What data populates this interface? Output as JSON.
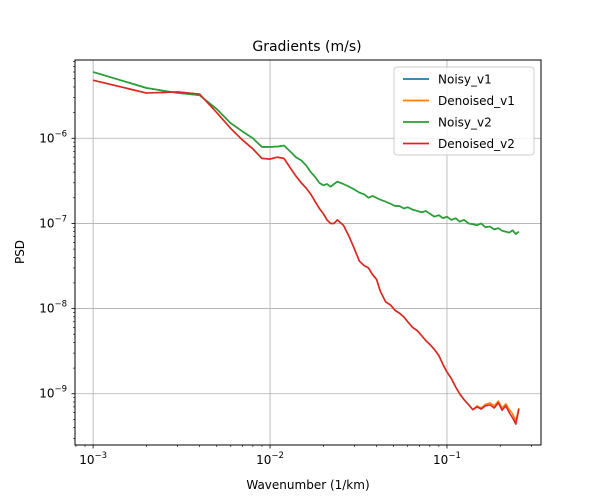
{
  "chart_data": {
    "type": "line",
    "title": "Gradients (m/s)",
    "xlabel": "Wavenumber (1/km)",
    "ylabel": "PSD",
    "xscale": "log",
    "yscale": "log",
    "xlim": [
      0.00079,
      0.34
    ],
    "ylim": [
      2.5e-10,
      8.3e-06
    ],
    "grid": true,
    "legend_position": "top-right",
    "x_ticks": [
      {
        "value": 0.001,
        "base": "10",
        "exp": "−3"
      },
      {
        "value": 0.01,
        "base": "10",
        "exp": "−2"
      },
      {
        "value": 0.1,
        "base": "10",
        "exp": "−1"
      }
    ],
    "y_ticks": [
      {
        "value": 1e-09,
        "base": "10",
        "exp": "−9"
      },
      {
        "value": 1e-08,
        "base": "10",
        "exp": "−8"
      },
      {
        "value": 1e-07,
        "base": "10",
        "exp": "−7"
      },
      {
        "value": 1e-06,
        "base": "10",
        "exp": "−6"
      }
    ],
    "x": [
      0.001,
      0.002,
      0.003,
      0.004,
      0.005,
      0.006,
      0.007,
      0.008,
      0.009,
      0.01,
      0.011,
      0.012,
      0.013,
      0.014,
      0.015,
      0.016,
      0.017,
      0.018,
      0.019,
      0.02,
      0.021,
      0.022,
      0.023,
      0.024,
      0.026,
      0.028,
      0.03,
      0.032,
      0.034,
      0.036,
      0.038,
      0.04,
      0.042,
      0.045,
      0.048,
      0.051,
      0.054,
      0.057,
      0.06,
      0.064,
      0.068,
      0.072,
      0.076,
      0.08,
      0.085,
      0.09,
      0.095,
      0.1,
      0.106,
      0.112,
      0.118,
      0.125,
      0.132,
      0.14,
      0.148,
      0.156,
      0.165,
      0.175,
      0.185,
      0.195,
      0.205,
      0.215,
      0.225,
      0.235,
      0.245,
      0.255
    ],
    "series": [
      {
        "name": "Noisy_v1",
        "color": "#1f77b4",
        "values": [
          6e-06,
          3.9e-06,
          3.4e-06,
          3.2e-06,
          2.2e-06,
          1.5e-06,
          1.2e-06,
          1e-06,
          7.9e-07,
          7.9e-07,
          8e-07,
          8.2e-07,
          7e-07,
          6e-07,
          5.5e-07,
          4.8e-07,
          4e-07,
          3.5e-07,
          3e-07,
          2.8e-07,
          2.9e-07,
          2.7e-07,
          2.9e-07,
          3.1e-07,
          2.9e-07,
          2.7e-07,
          2.5e-07,
          2.3e-07,
          2.2e-07,
          2e-07,
          2.1e-07,
          2e-07,
          1.9e-07,
          1.8e-07,
          1.7e-07,
          1.6e-07,
          1.6e-07,
          1.5e-07,
          1.55e-07,
          1.45e-07,
          1.4e-07,
          1.35e-07,
          1.4e-07,
          1.3e-07,
          1.2e-07,
          1.25e-07,
          1.15e-07,
          1.2e-07,
          1.1e-07,
          1.15e-07,
          1.05e-07,
          1.1e-07,
          1e-07,
          9.8e-08,
          9.5e-08,
          1e-07,
          9e-08,
          9.2e-08,
          8.5e-08,
          8.8e-08,
          8.2e-08,
          8e-08,
          7.8e-08,
          8.3e-08,
          7.5e-08,
          8e-08
        ]
      },
      {
        "name": "Denoised_v1",
        "color": "#ff7f0e",
        "values": [
          4.8e-06,
          3.4e-06,
          3.5e-06,
          3.3e-06,
          2e-06,
          1.3e-06,
          9.5e-07,
          7.5e-07,
          5.8e-07,
          5.7e-07,
          6e-07,
          5.8e-07,
          4.5e-07,
          3.6e-07,
          3e-07,
          2.6e-07,
          2.2e-07,
          1.8e-07,
          1.5e-07,
          1.3e-07,
          1.1e-07,
          1e-07,
          1e-07,
          1.1e-07,
          9.5e-08,
          7e-08,
          5e-08,
          3.6e-08,
          3.2e-08,
          3e-08,
          2.5e-08,
          2.2e-08,
          1.6e-08,
          1.2e-08,
          1.1e-08,
          9.5e-09,
          8.8e-09,
          8e-09,
          7e-09,
          6e-09,
          5.5e-09,
          4.8e-09,
          4.2e-09,
          3.8e-09,
          3.3e-09,
          2.8e-09,
          2.2e-09,
          1.8e-09,
          1.5e-09,
          1.2e-09,
          1e-09,
          8.5e-10,
          7.5e-10,
          6.5e-10,
          7.2e-10,
          6.8e-10,
          7.5e-10,
          7.8e-10,
          7.2e-10,
          8.2e-10,
          6.8e-10,
          7.6e-10,
          6.5e-10,
          5.8e-10,
          4.8e-10,
          6.8e-10
        ]
      },
      {
        "name": "Noisy_v2",
        "color": "#2ca02c",
        "values": [
          6e-06,
          3.9e-06,
          3.4e-06,
          3.2e-06,
          2.2e-06,
          1.5e-06,
          1.2e-06,
          1e-06,
          7.9e-07,
          7.9e-07,
          8e-07,
          8.2e-07,
          7e-07,
          6e-07,
          5.5e-07,
          4.8e-07,
          4e-07,
          3.5e-07,
          3e-07,
          2.8e-07,
          2.9e-07,
          2.7e-07,
          2.9e-07,
          3.1e-07,
          2.9e-07,
          2.7e-07,
          2.5e-07,
          2.3e-07,
          2.2e-07,
          2e-07,
          2.1e-07,
          2e-07,
          1.9e-07,
          1.8e-07,
          1.7e-07,
          1.6e-07,
          1.6e-07,
          1.5e-07,
          1.55e-07,
          1.45e-07,
          1.4e-07,
          1.35e-07,
          1.4e-07,
          1.3e-07,
          1.2e-07,
          1.25e-07,
          1.15e-07,
          1.2e-07,
          1.1e-07,
          1.15e-07,
          1.05e-07,
          1.1e-07,
          1e-07,
          9.8e-08,
          9.5e-08,
          1e-07,
          9e-08,
          9.2e-08,
          8.5e-08,
          8.8e-08,
          8.2e-08,
          8e-08,
          7.8e-08,
          8.3e-08,
          7.5e-08,
          8e-08
        ]
      },
      {
        "name": "Denoised_v2",
        "color": "#d62728",
        "values": [
          4.8e-06,
          3.4e-06,
          3.5e-06,
          3.3e-06,
          2e-06,
          1.3e-06,
          9.5e-07,
          7.5e-07,
          5.8e-07,
          5.7e-07,
          6e-07,
          5.8e-07,
          4.5e-07,
          3.6e-07,
          3e-07,
          2.6e-07,
          2.2e-07,
          1.8e-07,
          1.5e-07,
          1.3e-07,
          1.1e-07,
          1e-07,
          1e-07,
          1.1e-07,
          9.5e-08,
          7e-08,
          5e-08,
          3.6e-08,
          3.2e-08,
          3e-08,
          2.5e-08,
          2.2e-08,
          1.6e-08,
          1.2e-08,
          1.1e-08,
          9.5e-09,
          8.8e-09,
          8e-09,
          7e-09,
          6e-09,
          5.5e-09,
          4.8e-09,
          4.2e-09,
          3.8e-09,
          3.3e-09,
          2.8e-09,
          2.2e-09,
          1.8e-09,
          1.5e-09,
          1.2e-09,
          1e-09,
          8.5e-10,
          7.5e-10,
          6.5e-10,
          7e-10,
          6.6e-10,
          7.2e-10,
          7.4e-10,
          6.8e-10,
          7.8e-10,
          6.4e-10,
          7.2e-10,
          6e-10,
          5.2e-10,
          4.4e-10,
          6.6e-10
        ]
      }
    ]
  }
}
